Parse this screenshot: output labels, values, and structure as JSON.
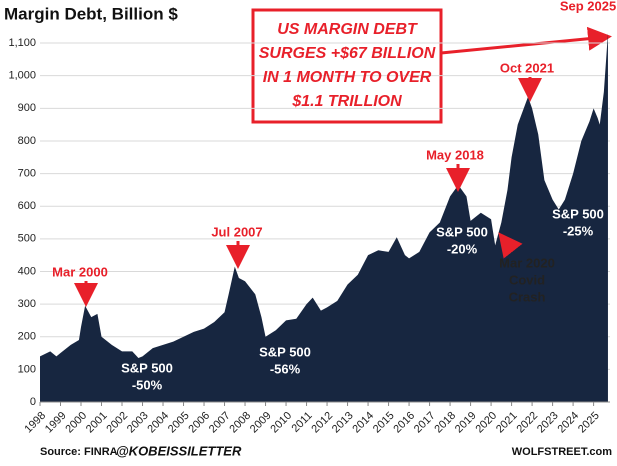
{
  "chart_data": {
    "type": "area",
    "title": "Margin Debt, Billion $",
    "x": [
      1998.0,
      1998.5,
      1998.8,
      1999.0,
      1999.5,
      1999.9,
      2000.0,
      2000.2,
      2000.5,
      2000.8,
      2001.0,
      2001.5,
      2002.0,
      2002.5,
      2002.8,
      2003.0,
      2003.5,
      2004.0,
      2004.5,
      2005.0,
      2005.5,
      2006.0,
      2006.5,
      2007.0,
      2007.2,
      2007.5,
      2007.7,
      2008.0,
      2008.5,
      2008.8,
      2009.0,
      2009.5,
      2010.0,
      2010.5,
      2011.0,
      2011.3,
      2011.7,
      2012.0,
      2012.5,
      2013.0,
      2013.5,
      2014.0,
      2014.5,
      2015.0,
      2015.4,
      2015.8,
      2016.0,
      2016.5,
      2017.0,
      2017.5,
      2018.0,
      2018.4,
      2018.8,
      2019.0,
      2019.5,
      2020.0,
      2020.2,
      2020.5,
      2020.8,
      2021.0,
      2021.3,
      2021.8,
      2022.0,
      2022.3,
      2022.6,
      2023.0,
      2023.3,
      2023.6,
      2024.0,
      2024.4,
      2024.8,
      2025.0,
      2025.2,
      2025.3,
      2025.5,
      2025.7
    ],
    "values": [
      140,
      155,
      140,
      150,
      175,
      190,
      230,
      295,
      260,
      270,
      200,
      175,
      155,
      155,
      135,
      140,
      165,
      175,
      185,
      200,
      215,
      225,
      245,
      275,
      330,
      415,
      380,
      370,
      330,
      260,
      200,
      220,
      250,
      255,
      300,
      320,
      280,
      290,
      310,
      360,
      390,
      450,
      465,
      460,
      505,
      450,
      440,
      460,
      520,
      550,
      630,
      665,
      630,
      555,
      580,
      560,
      480,
      550,
      650,
      750,
      850,
      935,
      900,
      820,
      680,
      620,
      590,
      620,
      700,
      800,
      860,
      900,
      870,
      850,
      950,
      1130
    ],
    "color": "#172640",
    "xlim": [
      1998,
      2025.8
    ],
    "xticks": [
      1998,
      1999,
      2000,
      2001,
      2002,
      2003,
      2004,
      2005,
      2006,
      2007,
      2008,
      2009,
      2010,
      2011,
      2012,
      2013,
      2014,
      2015,
      2016,
      2017,
      2018,
      2019,
      2020,
      2021,
      2022,
      2023,
      2024,
      2025
    ],
    "ylim": [
      0,
      1140
    ],
    "yticks": [
      0,
      100,
      200,
      300,
      400,
      500,
      600,
      700,
      800,
      900,
      {
        "value": 1000,
        "label": "1,000"
      },
      {
        "value": 1100,
        "label": "1,100"
      }
    ],
    "annotations": [
      {
        "lines": [
          "Mar 2000"
        ]
      },
      {
        "lines": [
          "Jul 2007"
        ]
      },
      {
        "lines": [
          "May 2018"
        ]
      },
      {
        "lines": [
          "Oct 2021"
        ]
      },
      {
        "lines": [
          "Sep 2025"
        ]
      },
      {
        "lines": [
          "S&P 500",
          "-50%"
        ]
      },
      {
        "lines": [
          "S&P 500",
          "-56%"
        ]
      },
      {
        "lines": [
          "S&P 500",
          "-20%"
        ]
      },
      {
        "lines": [
          "S&P 500",
          "-25%"
        ]
      },
      {
        "lines": [
          "Mar 2020",
          "Covid",
          "Crash"
        ]
      }
    ],
    "callout": [
      "US MARGIN DEBT",
      "SURGES +$67 BILLION",
      "IN 1 MONTH TO OVER",
      "$1.1 TRILLION"
    ],
    "source": "Source: FINRA",
    "handle": "@KOBEISSILETTER",
    "site": "WOLFSTREET.com"
  }
}
